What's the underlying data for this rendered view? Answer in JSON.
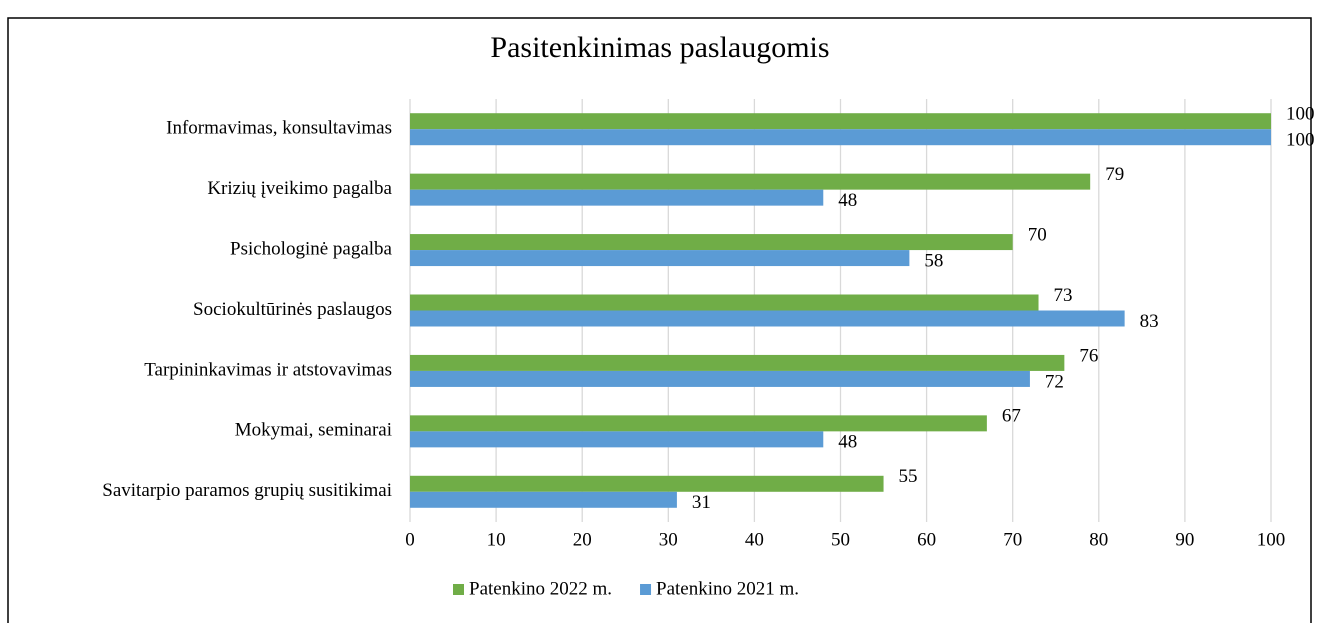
{
  "chart_data": {
    "type": "hbar",
    "title": "Pasitenkinimas paslaugomis",
    "categories": [
      "Informavimas, konsultavimas",
      "Krizių įveikimo pagalba",
      "Psichologinė pagalba",
      "Sociokultūrinės paslaugos",
      "Tarpininkavimas ir atstovavimas",
      "Mokymai, seminarai",
      "Savitarpio paramos grupių susitikimai"
    ],
    "series": [
      {
        "name": "Patenkino 2022 m.",
        "color": "#70ad47",
        "values": [
          100,
          79,
          70,
          73,
          76,
          67,
          55
        ]
      },
      {
        "name": "Patenkino 2021 m.",
        "color": "#5b9bd5",
        "values": [
          100,
          48,
          58,
          83,
          72,
          48,
          31
        ]
      }
    ],
    "xlim": [
      0,
      100
    ],
    "xticks": [
      0,
      10,
      20,
      30,
      40,
      50,
      60,
      70,
      80,
      90,
      100
    ],
    "grid": true,
    "legend": "bottom"
  }
}
